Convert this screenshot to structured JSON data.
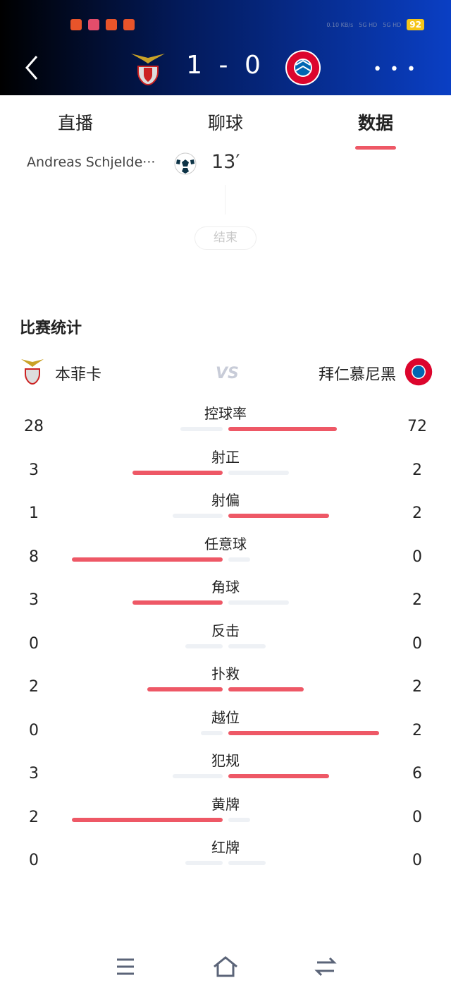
{
  "status_bar": {
    "battery": "92",
    "net": "0.10 KB/s",
    "sig1": "5G HD",
    "sig2": "5G HD"
  },
  "match": {
    "home_score": "1",
    "away_score": "0",
    "score_text": "1 - 0"
  },
  "tabs": [
    {
      "label": "直播"
    },
    {
      "label": "聊球"
    },
    {
      "label": "数据",
      "active": true
    }
  ],
  "event": {
    "player": "Andreas Schjelde···",
    "minute": "13′",
    "icon": "soccer-ball-icon"
  },
  "end_label": "结束",
  "stats_title": "比赛统计",
  "teams": {
    "home": "本菲卡",
    "away": "拜仁慕尼黑",
    "vs": "VS"
  },
  "colors": {
    "accent": "#ee5866",
    "bar_bg": "#eef1f5",
    "header_dark": "#000000",
    "header_blue": "#0a3fc4"
  },
  "stats": [
    {
      "label": "控球率",
      "home": 28,
      "away": 72
    },
    {
      "label": "射正",
      "home": 3,
      "away": 2
    },
    {
      "label": "射偏",
      "home": 1,
      "away": 2
    },
    {
      "label": "任意球",
      "home": 8,
      "away": 0
    },
    {
      "label": "角球",
      "home": 3,
      "away": 2
    },
    {
      "label": "反击",
      "home": 0,
      "away": 0
    },
    {
      "label": "扑救",
      "home": 2,
      "away": 2
    },
    {
      "label": "越位",
      "home": 0,
      "away": 2
    },
    {
      "label": "犯规",
      "home": 3,
      "away": 6
    },
    {
      "label": "黄牌",
      "home": 2,
      "away": 0
    },
    {
      "label": "红牌",
      "home": 0,
      "away": 0
    }
  ],
  "bottom_nav": [
    {
      "icon": "menu-icon"
    },
    {
      "icon": "home-icon"
    },
    {
      "icon": "back-switch-icon"
    }
  ]
}
